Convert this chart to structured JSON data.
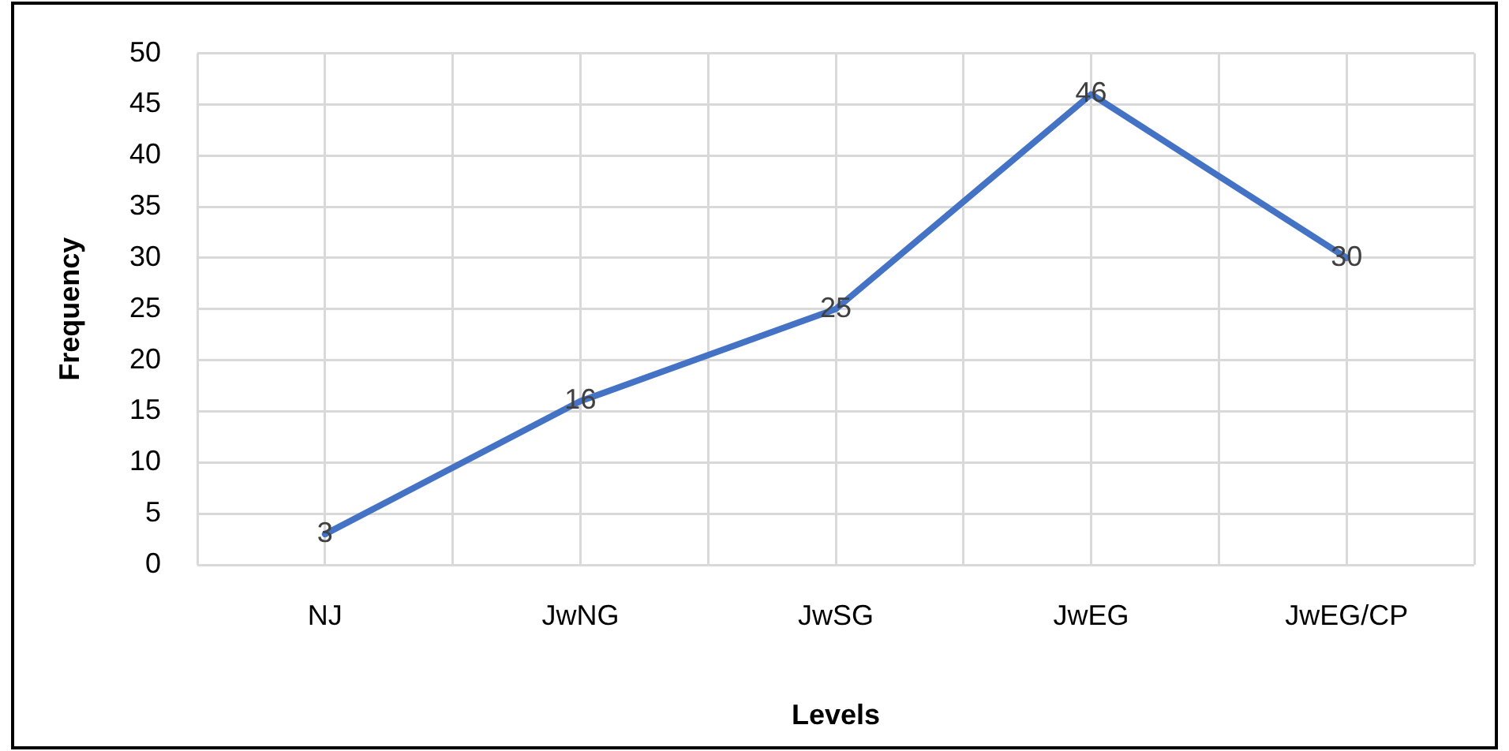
{
  "chart_data": {
    "type": "line",
    "xlabel": "Levels",
    "ylabel": "Frequency",
    "categories": [
      "NJ",
      "JwNG",
      "JwSG",
      "JwEG",
      "JwEG/CP"
    ],
    "values": [
      3,
      16,
      25,
      46,
      30
    ],
    "color": "#4472c4",
    "ylim": [
      0,
      50
    ],
    "yticks": [
      0,
      5,
      10,
      15,
      20,
      25,
      30,
      35,
      40,
      45,
      50
    ],
    "grid": true,
    "legend": false,
    "marker": "none",
    "line_style": "solid",
    "data_labels": true
  }
}
